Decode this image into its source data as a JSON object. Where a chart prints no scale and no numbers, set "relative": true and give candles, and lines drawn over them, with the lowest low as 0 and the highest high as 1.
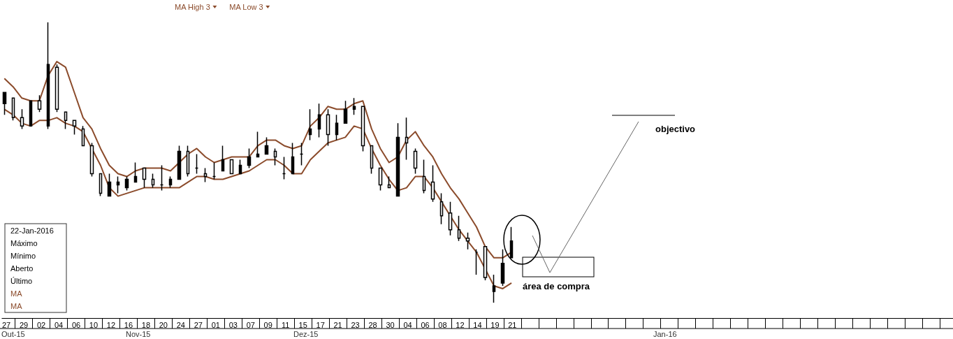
{
  "chart_data": {
    "type": "candlestick",
    "relative": true,
    "color": "#000000",
    "categories": [
      "27",
      null,
      "29",
      null,
      "02",
      null,
      "04",
      null,
      "06",
      null,
      "10",
      null,
      "12",
      null,
      "16",
      null,
      "18",
      null,
      "20",
      null,
      "24",
      null,
      "27",
      null,
      "01",
      null,
      "03",
      null,
      "07",
      null,
      "09",
      null,
      "11",
      null,
      "15",
      null,
      "17",
      null,
      "21",
      null,
      "23",
      null,
      "28",
      null,
      "30",
      null,
      "04",
      null,
      "06",
      null,
      "08",
      null,
      "12",
      null,
      "14",
      null,
      "19",
      null,
      "21",
      null,
      null,
      null,
      null,
      null,
      null,
      null,
      null,
      null,
      null,
      null,
      null,
      null,
      null,
      null,
      null,
      null,
      null,
      null,
      null,
      null,
      null,
      null,
      null,
      null,
      null,
      null,
      null,
      null,
      null,
      null,
      null,
      null,
      null,
      null,
      null,
      null,
      null,
      null,
      null,
      null,
      null,
      null,
      null,
      null,
      null,
      null,
      null,
      null,
      null
    ],
    "ohlc": [
      [
        0.71,
        0.75,
        0.67,
        0.75
      ],
      [
        0.73,
        0.73,
        0.65,
        0.66
      ],
      [
        0.66,
        0.69,
        0.62,
        0.63
      ],
      [
        0.63,
        0.72,
        0.63,
        0.72
      ],
      [
        0.72,
        0.74,
        0.68,
        0.69
      ],
      [
        0.63,
        1.0,
        0.62,
        0.85
      ],
      [
        0.84,
        0.85,
        0.68,
        0.69
      ],
      [
        0.68,
        0.68,
        0.62,
        0.65
      ],
      [
        0.65,
        0.65,
        0.6,
        0.63
      ],
      [
        0.62,
        0.63,
        0.56,
        0.56
      ],
      [
        0.56,
        0.57,
        0.45,
        0.46
      ],
      [
        0.46,
        0.46,
        0.38,
        0.39
      ],
      [
        0.38,
        0.46,
        0.38,
        0.43
      ],
      [
        0.42,
        0.45,
        0.39,
        0.43
      ],
      [
        0.41,
        0.45,
        0.4,
        0.44
      ],
      [
        0.43,
        0.5,
        0.43,
        0.45
      ],
      [
        0.48,
        0.48,
        0.41,
        0.44
      ],
      [
        0.44,
        0.46,
        0.41,
        0.42
      ],
      [
        0.42,
        0.49,
        0.4,
        0.42
      ],
      [
        0.42,
        0.45,
        0.41,
        0.44
      ],
      [
        0.44,
        0.56,
        0.44,
        0.54
      ],
      [
        0.54,
        0.56,
        0.45,
        0.46
      ],
      [
        0.48,
        0.53,
        0.46,
        0.48
      ],
      [
        0.46,
        0.48,
        0.43,
        0.45
      ],
      [
        0.45,
        0.5,
        0.44,
        0.45
      ],
      [
        0.47,
        0.56,
        0.47,
        0.51
      ],
      [
        0.51,
        0.51,
        0.46,
        0.46
      ],
      [
        0.46,
        0.51,
        0.46,
        0.49
      ],
      [
        0.49,
        0.55,
        0.48,
        0.52
      ],
      [
        0.52,
        0.61,
        0.52,
        0.53
      ],
      [
        0.53,
        0.59,
        0.53,
        0.56
      ],
      [
        0.54,
        0.55,
        0.49,
        0.52
      ],
      [
        0.46,
        0.52,
        0.44,
        0.46
      ],
      [
        0.46,
        0.57,
        0.46,
        0.52
      ],
      [
        0.53,
        0.57,
        0.49,
        0.53
      ],
      [
        0.6,
        0.69,
        0.58,
        0.62
      ],
      [
        0.62,
        0.71,
        0.59,
        0.67
      ],
      [
        0.67,
        0.69,
        0.56,
        0.6
      ],
      [
        0.6,
        0.67,
        0.58,
        0.64
      ],
      [
        0.64,
        0.72,
        0.64,
        0.69
      ],
      [
        0.69,
        0.73,
        0.67,
        0.7
      ],
      [
        0.7,
        0.7,
        0.54,
        0.56
      ],
      [
        0.56,
        0.56,
        0.46,
        0.48
      ],
      [
        0.48,
        0.48,
        0.4,
        0.42
      ],
      [
        0.42,
        0.45,
        0.41,
        0.41
      ],
      [
        0.38,
        0.64,
        0.38,
        0.59
      ],
      [
        0.59,
        0.66,
        0.51,
        0.57
      ],
      [
        0.54,
        0.55,
        0.46,
        0.48
      ],
      [
        0.45,
        0.51,
        0.39,
        0.4
      ],
      [
        0.43,
        0.49,
        0.36,
        0.37
      ],
      [
        0.36,
        0.39,
        0.28,
        0.31
      ],
      [
        0.32,
        0.36,
        0.24,
        0.26
      ],
      [
        0.26,
        0.31,
        0.22,
        0.23
      ],
      [
        0.23,
        0.25,
        0.19,
        0.22
      ],
      [
        0.18,
        0.19,
        0.1,
        0.18
      ],
      [
        0.2,
        0.2,
        0.08,
        0.09
      ],
      [
        0.04,
        0.1,
        0.0,
        0.06
      ],
      [
        0.07,
        0.19,
        0.06,
        0.14
      ],
      [
        0.16,
        0.27,
        0.16,
        0.22
      ],
      null,
      null,
      null,
      null,
      null,
      null,
      null,
      null,
      null,
      null,
      null,
      null,
      null,
      null,
      null,
      null,
      null,
      null,
      null,
      null,
      null,
      null,
      null,
      null,
      null,
      null,
      null,
      null,
      null,
      null,
      null,
      null,
      null,
      null,
      null,
      null,
      null,
      null,
      null,
      null,
      null,
      null,
      null,
      null,
      null,
      null,
      null,
      null,
      null,
      null
    ],
    "series": [
      {
        "name": "MA High 3",
        "type": "line",
        "color": "#8b4b2b",
        "values": [
          0.8,
          0.77,
          0.73,
          0.72,
          0.72,
          0.81,
          0.86,
          0.84,
          0.75,
          0.66,
          0.62,
          0.55,
          0.49,
          0.46,
          0.45,
          0.47,
          0.48,
          0.48,
          0.48,
          0.47,
          0.5,
          0.53,
          0.55,
          0.52,
          0.5,
          0.51,
          0.52,
          0.52,
          0.52,
          0.56,
          0.58,
          0.58,
          0.56,
          0.55,
          0.56,
          0.63,
          0.66,
          0.7,
          0.69,
          0.69,
          0.71,
          0.72,
          0.62,
          0.55,
          0.5,
          0.52,
          0.58,
          0.61,
          0.56,
          0.52,
          0.46,
          0.41,
          0.37,
          0.32,
          0.27,
          0.2,
          0.16,
          0.16,
          0.18,
          null,
          null,
          null,
          null,
          null,
          null,
          null,
          null,
          null,
          null,
          null,
          null,
          null,
          null,
          null,
          null,
          null,
          null,
          null,
          null,
          null,
          null,
          null,
          null,
          null,
          null,
          null,
          null,
          null,
          null,
          null,
          null,
          null,
          null,
          null,
          null,
          null,
          null,
          null,
          null,
          null,
          null,
          null,
          null,
          null,
          null,
          null,
          null,
          null,
          null
        ]
      },
      {
        "name": "MA Low 3",
        "type": "line",
        "color": "#8b4b2b",
        "values": [
          0.69,
          0.67,
          0.64,
          0.63,
          0.65,
          0.65,
          0.66,
          0.64,
          0.63,
          0.61,
          0.55,
          0.49,
          0.41,
          0.38,
          0.39,
          0.4,
          0.41,
          0.41,
          0.41,
          0.41,
          0.41,
          0.43,
          0.45,
          0.45,
          0.44,
          0.44,
          0.45,
          0.46,
          0.47,
          0.49,
          0.51,
          0.51,
          0.49,
          0.46,
          0.46,
          0.51,
          0.54,
          0.57,
          0.58,
          0.59,
          0.63,
          0.62,
          0.55,
          0.49,
          0.44,
          0.4,
          0.41,
          0.45,
          0.45,
          0.41,
          0.36,
          0.31,
          0.26,
          0.22,
          0.18,
          0.12,
          0.06,
          0.05,
          0.07,
          null,
          null,
          null,
          null,
          null,
          null,
          null,
          null,
          null,
          null,
          null,
          null,
          null,
          null,
          null,
          null,
          null,
          null,
          null,
          null,
          null,
          null,
          null,
          null,
          null,
          null,
          null,
          null,
          null,
          null,
          null,
          null,
          null,
          null,
          null,
          null,
          null,
          null,
          null,
          null,
          null,
          null,
          null,
          null,
          null,
          null,
          null,
          null,
          null,
          null
        ]
      }
    ],
    "legend": "top left",
    "annotations": [
      "Out-15",
      "Nov-15",
      "Dez-15",
      "Jan-16",
      "22-Jan-2016",
      "Máximo",
      "Mínimo",
      "Aberto",
      "Último",
      "MA",
      "MA",
      "objectivo",
      "área de compra"
    ]
  }
}
